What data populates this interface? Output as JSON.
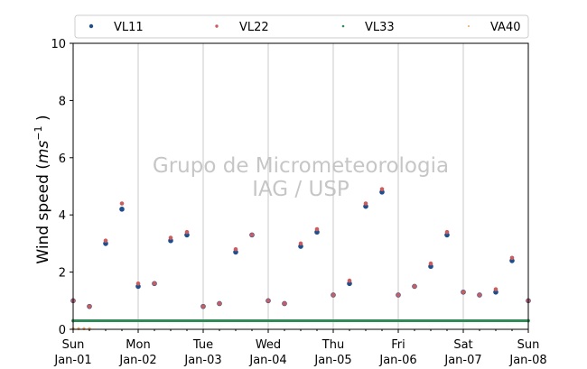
{
  "chart_data": {
    "type": "scatter",
    "ylabel_text": "Wind speed (",
    "ylabel_unit_base": "ms",
    "ylabel_unit_exp": "−1",
    "ylabel_close": " )",
    "ylim": [
      0,
      10
    ],
    "yticks": [
      "0",
      "2",
      "4",
      "6",
      "8",
      "10"
    ],
    "xlim_days": [
      0,
      7
    ],
    "xticks_top": [
      "Sun",
      "Mon",
      "Tue",
      "Wed",
      "Thu",
      "Fri",
      "Sat",
      "Sun"
    ],
    "xticks_bottom": [
      "Jan-01",
      "Jan-02",
      "Jan-03",
      "Jan-04",
      "Jan-05",
      "Jan-06",
      "Jan-07",
      "Jan-08"
    ],
    "grid": "vertical",
    "legend_position": "top",
    "watermark": [
      "Grupo de Micrometeorologia",
      "IAG / USP"
    ],
    "colors": {
      "VL11": "#1f4e8c",
      "VL22": "#cd5c5c",
      "VL33": "#2e8b57",
      "VA40": "#f4a460"
    },
    "series": [
      {
        "name": "VL11",
        "x_hour": [
          0,
          6,
          12,
          18,
          24,
          30,
          36,
          42,
          48,
          54,
          60,
          66,
          72,
          78,
          84,
          90,
          96,
          102,
          108,
          114,
          120,
          126,
          132,
          138,
          144,
          150,
          156,
          162,
          168
        ],
        "y": [
          1.0,
          0.8,
          3.0,
          4.2,
          1.5,
          1.6,
          3.1,
          3.3,
          0.8,
          0.9,
          2.7,
          3.3,
          1.0,
          0.9,
          2.9,
          3.4,
          1.2,
          1.6,
          4.3,
          4.8,
          1.2,
          1.5,
          2.2,
          3.3,
          1.3,
          1.2,
          1.3,
          2.4,
          1.0
        ]
      },
      {
        "name": "VL22",
        "x_hour": [
          0,
          6,
          12,
          18,
          24,
          30,
          36,
          42,
          48,
          54,
          60,
          66,
          72,
          78,
          84,
          90,
          96,
          102,
          108,
          114,
          120,
          126,
          132,
          138,
          144,
          150,
          156,
          162,
          168
        ],
        "y": [
          1.0,
          0.8,
          3.1,
          4.4,
          1.6,
          1.6,
          3.2,
          3.4,
          0.8,
          0.9,
          2.8,
          3.3,
          1.0,
          0.9,
          3.0,
          3.5,
          1.2,
          1.7,
          4.4,
          4.9,
          1.2,
          1.5,
          2.3,
          3.4,
          1.3,
          1.2,
          1.4,
          2.5,
          1.0
        ]
      },
      {
        "name": "VL33",
        "x_hour": [
          0,
          168
        ],
        "y": [
          0.3,
          0.3
        ]
      },
      {
        "name": "VA40",
        "x_hour": [
          0,
          2,
          4,
          6
        ],
        "y": [
          0.02,
          0.02,
          0.02,
          0.02
        ]
      }
    ]
  }
}
